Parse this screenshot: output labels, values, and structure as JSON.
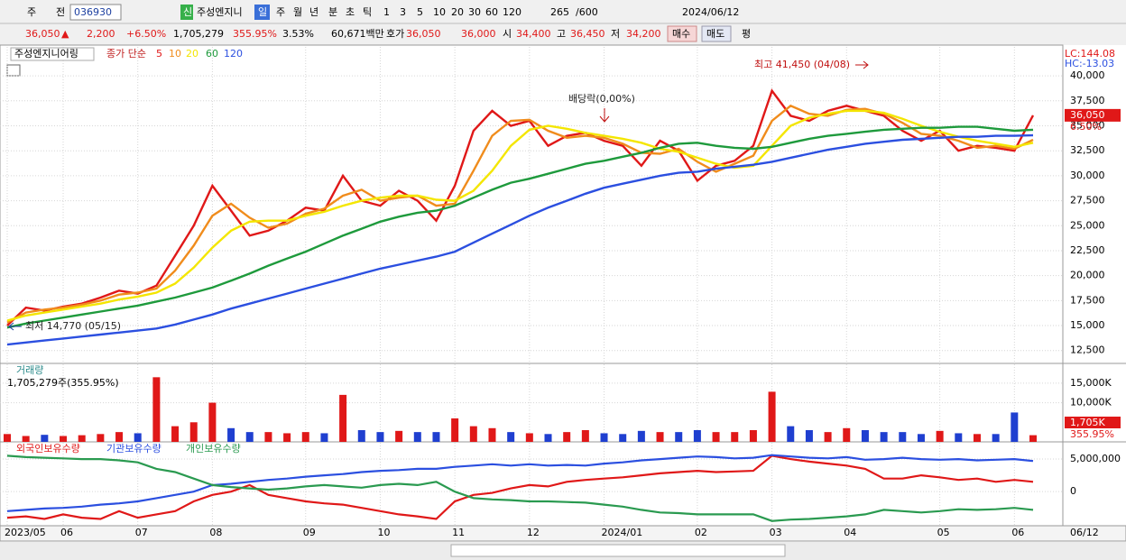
{
  "toolbar": {
    "row1": [
      "주",
      "전",
      "036930",
      "신",
      "주성엔지니",
      "일",
      "주",
      "월",
      "년",
      "분",
      "초",
      "틱",
      "1",
      "3",
      "5",
      "10",
      "20",
      "30",
      "60",
      "120",
      "265",
      "/600",
      "2024/06/12"
    ],
    "row2": [
      "36,050",
      "▲",
      "2,200",
      "+6.50%",
      "1,705,279",
      "355.95%",
      "3.53%",
      "60,671백만",
      "호가",
      "36,050",
      "36,000",
      "시",
      "34,400",
      "고",
      "36,450",
      "저",
      "34,200",
      "매수",
      "매도",
      "평"
    ]
  },
  "chart_data": [
    {
      "type": "line",
      "title": "주성엔지니어링",
      "subtitle": "종가 단순",
      "hc_lc": [
        "LC:144.08",
        "HC:-13.03"
      ],
      "annotations": [
        "최고 41,450 (04/08)",
        "최저 14,770 (05/15)",
        "배당락(0,00%)"
      ],
      "current_labels": [
        "36,050",
        "6.50%"
      ],
      "x_end_label": "06/12",
      "grid": true,
      "categories": [
        "2023/05",
        null,
        null,
        "06",
        null,
        null,
        null,
        "07",
        null,
        null,
        null,
        "08",
        null,
        null,
        null,
        null,
        "09",
        null,
        null,
        null,
        "10",
        null,
        null,
        null,
        "11",
        null,
        null,
        null,
        "12",
        null,
        null,
        null,
        "2024/01",
        null,
        null,
        null,
        null,
        "02",
        null,
        null,
        null,
        "03",
        null,
        null,
        null,
        "04",
        null,
        null,
        null,
        null,
        "05",
        null,
        null,
        null,
        "06",
        null
      ],
      "ylim": [
        11300,
        42900
      ],
      "yticks": [
        {
          "value": 12500,
          "label": "12,500"
        },
        {
          "value": 15000,
          "label": "15,000"
        },
        {
          "value": 17500,
          "label": "17,500"
        },
        {
          "value": 20000,
          "label": "20,000"
        },
        {
          "value": 22500,
          "label": "22,500"
        },
        {
          "value": 25000,
          "label": "25,000"
        },
        {
          "value": 27500,
          "label": "27,500"
        },
        {
          "value": 30000,
          "label": "30,000"
        },
        {
          "value": 32500,
          "label": "32,500"
        },
        {
          "value": 35000,
          "label": "35,000"
        },
        {
          "value": 37500,
          "label": "37,500"
        },
        {
          "value": 40000,
          "label": "40,000"
        }
      ],
      "series": [
        {
          "name": "5",
          "color": "#e01818",
          "values": [
            15000,
            16800,
            16500,
            16900,
            17200,
            17800,
            18500,
            18200,
            19000,
            22000,
            25000,
            29000,
            26500,
            24000,
            24500,
            25500,
            26800,
            26500,
            30000,
            27500,
            27000,
            28500,
            27500,
            25500,
            29000,
            34500,
            36500,
            35000,
            35500,
            33000,
            34000,
            34300,
            33500,
            33000,
            31000,
            33500,
            32500,
            29500,
            31000,
            31500,
            33000,
            38500,
            36000,
            35500,
            36500,
            37000,
            36500,
            36000,
            34500,
            33500,
            34500,
            32500,
            33000,
            32800,
            32500,
            36050
          ]
        },
        {
          "name": "10",
          "color": "#f08c1c",
          "values": [
            15300,
            16300,
            16600,
            16800,
            17100,
            17500,
            18100,
            18300,
            18700,
            20500,
            23000,
            26000,
            27200,
            25800,
            24800,
            25200,
            26200,
            26700,
            28000,
            28600,
            27500,
            27800,
            28000,
            27000,
            27200,
            30500,
            34000,
            35500,
            35600,
            34500,
            33800,
            34000,
            33800,
            33200,
            32300,
            32200,
            32700,
            31400,
            30400,
            31200,
            32000,
            35500,
            37000,
            36200,
            36000,
            36600,
            36700,
            36200,
            35300,
            34200,
            34000,
            33500,
            32800,
            33000,
            32700,
            33600
          ]
        },
        {
          "name": "20",
          "color": "#f4e600",
          "values": [
            15500,
            16000,
            16300,
            16600,
            16900,
            17200,
            17600,
            17900,
            18300,
            19200,
            20800,
            22800,
            24500,
            25400,
            25500,
            25500,
            26000,
            26400,
            27000,
            27500,
            27800,
            28000,
            28000,
            27600,
            27500,
            28500,
            30500,
            33000,
            34600,
            35000,
            34700,
            34300,
            34000,
            33700,
            33300,
            32700,
            32400,
            31800,
            31200,
            30800,
            31000,
            33000,
            35000,
            35800,
            36200,
            36500,
            36500,
            36300,
            35700,
            35000,
            34400,
            33900,
            33500,
            33200,
            32900,
            33300
          ]
        },
        {
          "name": "60",
          "color": "#1e9a3c",
          "values": [
            14800,
            15200,
            15500,
            15800,
            16100,
            16400,
            16700,
            17000,
            17400,
            17800,
            18300,
            18800,
            19500,
            20200,
            21000,
            21700,
            22400,
            23200,
            24000,
            24700,
            25400,
            25900,
            26300,
            26500,
            27000,
            27800,
            28600,
            29300,
            29700,
            30200,
            30700,
            31200,
            31500,
            31900,
            32300,
            32800,
            33200,
            33300,
            33000,
            32800,
            32700,
            32900,
            33300,
            33700,
            34000,
            34200,
            34400,
            34600,
            34700,
            34800,
            34800,
            34900,
            34900,
            34700,
            34500,
            34600
          ]
        },
        {
          "name": "120",
          "color": "#2b4fe0",
          "values": [
            13100,
            13300,
            13500,
            13700,
            13900,
            14100,
            14300,
            14500,
            14700,
            15100,
            15600,
            16100,
            16700,
            17200,
            17700,
            18200,
            18700,
            19200,
            19700,
            20200,
            20700,
            21100,
            21500,
            21900,
            22400,
            23300,
            24200,
            25100,
            26000,
            26800,
            27500,
            28200,
            28800,
            29200,
            29600,
            30000,
            30300,
            30400,
            30700,
            30900,
            31100,
            31400,
            31800,
            32200,
            32600,
            32900,
            33200,
            33400,
            33600,
            33700,
            33800,
            33900,
            33900,
            34000,
            34000,
            34050
          ]
        }
      ]
    },
    {
      "type": "bar",
      "title": "거래량",
      "subtitle": "1,705,279주(355.95%)",
      "current_labels": [
        "1,705K",
        "355.95%"
      ],
      "grid": true,
      "up_color": "#e01818",
      "down_color": "#1f3fd0",
      "ylim": [
        0,
        19800
      ],
      "yticks": [
        {
          "value": 10000,
          "label": "10,000K"
        },
        {
          "value": 15000,
          "label": "15,000K"
        }
      ],
      "values": [
        2000,
        1500,
        1800,
        1500,
        1700,
        2000,
        2500,
        2200,
        16500,
        4000,
        5000,
        10000,
        3500,
        2500,
        2500,
        2200,
        2500,
        2200,
        12000,
        3000,
        2500,
        2800,
        2500,
        2500,
        6000,
        4000,
        3500,
        2500,
        2200,
        2000,
        2500,
        3000,
        2200,
        2000,
        2800,
        2500,
        2500,
        3000,
        2500,
        2500,
        3000,
        12800,
        4000,
        3000,
        2500,
        3500,
        3000,
        2500,
        2500,
        2000,
        2800,
        2200,
        2000,
        2000,
        7500,
        1705
      ]
    },
    {
      "type": "line",
      "grid": true,
      "ylim": [
        -5100000,
        7500000
      ],
      "yticks": [
        0,
        {
          "value": 5000000,
          "label": "5,000,000"
        }
      ],
      "series": [
        {
          "name": "외국인보유수량",
          "color": "#e01818",
          "values": [
            -4000000,
            -3800000,
            -4200000,
            -3500000,
            -4000000,
            -4200000,
            -3000000,
            -4000000,
            -3500000,
            -3000000,
            -1500000,
            -500000,
            0,
            1000000,
            -500000,
            -1000000,
            -1500000,
            -1800000,
            -2000000,
            -2500000,
            -3000000,
            -3500000,
            -3800000,
            -4200000,
            -1500000,
            -500000,
            -200000,
            500000,
            1000000,
            800000,
            1500000,
            1800000,
            2000000,
            2200000,
            2500000,
            2800000,
            3000000,
            3200000,
            3000000,
            3100000,
            3200000,
            5500000,
            5000000,
            4600000,
            4300000,
            4000000,
            3500000,
            2000000,
            2000000,
            2500000,
            2200000,
            1800000,
            2000000,
            1500000,
            1800000,
            1500000
          ]
        },
        {
          "name": "기관보유수량",
          "color": "#2b4fe0",
          "values": [
            -3000000,
            -2800000,
            -2600000,
            -2500000,
            -2300000,
            -2000000,
            -1800000,
            -1500000,
            -1000000,
            -500000,
            0,
            1000000,
            1200000,
            1500000,
            1800000,
            2000000,
            2300000,
            2500000,
            2700000,
            3000000,
            3200000,
            3300000,
            3500000,
            3500000,
            3800000,
            4000000,
            4200000,
            4000000,
            4200000,
            4000000,
            4100000,
            4000000,
            4300000,
            4500000,
            4800000,
            5000000,
            5200000,
            5400000,
            5300000,
            5100000,
            5200000,
            5600000,
            5400000,
            5200000,
            5100000,
            5300000,
            4900000,
            5000000,
            5200000,
            5000000,
            4900000,
            5000000,
            4800000,
            4900000,
            5000000,
            4700000
          ]
        },
        {
          "name": "개인보유수량",
          "color": "#2a9a50",
          "values": [
            5500000,
            5300000,
            5200000,
            5100000,
            5000000,
            5000000,
            4800000,
            4500000,
            3500000,
            3000000,
            2000000,
            1000000,
            700000,
            500000,
            300000,
            500000,
            800000,
            1000000,
            800000,
            600000,
            1000000,
            1200000,
            1000000,
            1500000,
            0,
            -1000000,
            -1200000,
            -1300000,
            -1500000,
            -1500000,
            -1600000,
            -1700000,
            -2000000,
            -2300000,
            -2800000,
            -3200000,
            -3300000,
            -3500000,
            -3500000,
            -3500000,
            -3500000,
            -4500000,
            -4300000,
            -4200000,
            -4000000,
            -3800000,
            -3500000,
            -2800000,
            -3000000,
            -3200000,
            -3000000,
            -2700000,
            -2800000,
            -2700000,
            -2500000,
            -2800000
          ]
        }
      ]
    }
  ]
}
